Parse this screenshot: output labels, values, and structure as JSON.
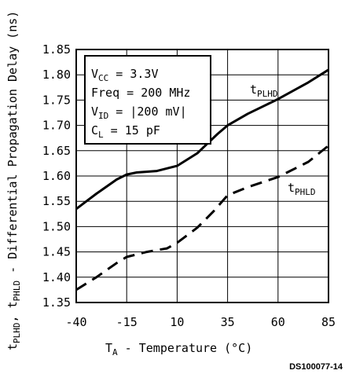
{
  "chart_data": {
    "type": "line",
    "x": [
      -40,
      -15,
      10,
      35,
      60,
      85
    ],
    "xlim": [
      -40,
      85
    ],
    "ylim": [
      1.35,
      1.85
    ],
    "x_ticks": [
      "-40",
      "-15",
      "10",
      "35",
      "60",
      "85"
    ],
    "y_ticks": [
      "1.85",
      "1.80",
      "1.75",
      "1.70",
      "1.65",
      "1.60",
      "1.55",
      "1.50",
      "1.45",
      "1.40",
      "1.35"
    ],
    "grid": true,
    "xlabel": {
      "main": "T",
      "sub": "A",
      "rest": " - Temperature (°C)"
    },
    "ylabel": {
      "p1": "t",
      "p1sub": "PLHD",
      "p2": ", t",
      "p2sub": "PHLD",
      "rest": " - Differential Propagation Delay (ns)"
    },
    "series": [
      {
        "name": {
          "main": "t",
          "sub": "PLHD"
        },
        "style": "solid",
        "points": [
          [
            -40,
            1.535
          ],
          [
            -30,
            1.565
          ],
          [
            -20,
            1.593
          ],
          [
            -15,
            1.603
          ],
          [
            -10,
            1.607
          ],
          [
            0,
            1.61
          ],
          [
            10,
            1.62
          ],
          [
            20,
            1.645
          ],
          [
            30,
            1.683
          ],
          [
            35,
            1.7
          ],
          [
            45,
            1.723
          ],
          [
            60,
            1.752
          ],
          [
            75,
            1.785
          ],
          [
            85,
            1.81
          ]
        ]
      },
      {
        "name": {
          "main": "t",
          "sub": "PHLD"
        },
        "style": "dashed",
        "points": [
          [
            -40,
            1.375
          ],
          [
            -30,
            1.4
          ],
          [
            -20,
            1.428
          ],
          [
            -15,
            1.44
          ],
          [
            -5,
            1.45
          ],
          [
            5,
            1.457
          ],
          [
            10,
            1.468
          ],
          [
            20,
            1.498
          ],
          [
            28,
            1.53
          ],
          [
            35,
            1.562
          ],
          [
            45,
            1.578
          ],
          [
            60,
            1.598
          ],
          [
            75,
            1.628
          ],
          [
            85,
            1.66
          ]
        ]
      }
    ],
    "conditions": [
      {
        "main": "V",
        "sub": "CC",
        "rest": " = 3.3V"
      },
      {
        "main": "Freq = 200 MHz",
        "sub": "",
        "rest": ""
      },
      {
        "main": "V",
        "sub": "ID",
        "rest": " = |200 mV|"
      },
      {
        "main": "C",
        "sub": "L",
        "rest": " = 15 pF"
      }
    ],
    "footer": "DS100077-14"
  },
  "colors": {
    "line": "#000000",
    "grid": "#000000",
    "background": "#ffffff"
  }
}
